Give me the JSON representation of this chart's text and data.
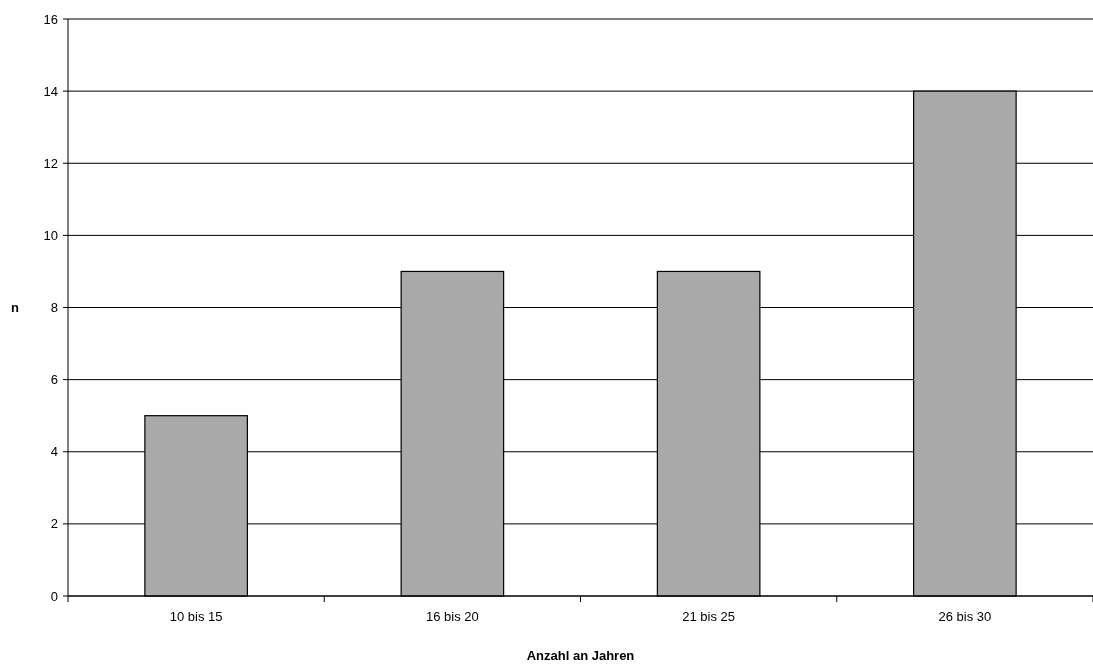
{
  "chart_data": {
    "type": "bar",
    "xlabel": "Anzahl an Jahren",
    "ylabel": "n",
    "categories": [
      "10 bis 15",
      "16 bis 20",
      "21 bis 25",
      "26 bis 30"
    ],
    "values": [
      5,
      9,
      9,
      14
    ],
    "color": "#a9a9a9",
    "ylim": [
      0,
      16
    ],
    "yticks": [
      0,
      2,
      4,
      6,
      8,
      10,
      12,
      14,
      16
    ],
    "grid": "y"
  }
}
